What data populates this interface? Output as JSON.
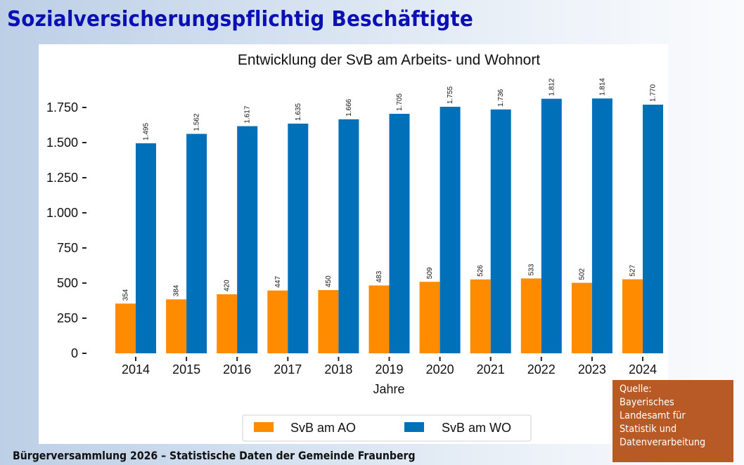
{
  "slide": {
    "title": "Sozialversicherungspflichtig Beschäftigte",
    "footer": "Bürgerversammlung 2026 – Statistische Daten der Gemeinde Fraunberg",
    "source_lines": [
      "Quelle:",
      "Bayerisches",
      "Landesamt für",
      "Statistik und",
      "Datenverarbeitung"
    ]
  },
  "colors": {
    "title": "#0a10b4",
    "series_ao": "#ff8c00",
    "series_wo": "#0070b8",
    "source_box": "#b85a26"
  },
  "chart_data": {
    "type": "bar",
    "title": "Entwicklung der SvB am Arbeits- und Wohnort",
    "xlabel": "Jahre",
    "ylabel": "",
    "categories": [
      "2014",
      "2015",
      "2016",
      "2017",
      "2018",
      "2019",
      "2020",
      "2021",
      "2022",
      "2023",
      "2024"
    ],
    "series": [
      {
        "name": "SvB am AO",
        "color": "#ff8c00",
        "values": [
          354,
          384,
          420,
          447,
          450,
          483,
          509,
          526,
          533,
          502,
          527
        ]
      },
      {
        "name": "SvB am WO",
        "color": "#0070b8",
        "values": [
          1495,
          1562,
          1617,
          1635,
          1666,
          1705,
          1755,
          1736,
          1812,
          1814,
          1770
        ]
      }
    ],
    "data_labels": [
      [
        "354",
        "384",
        "420",
        "447",
        "450",
        "483",
        "509",
        "526",
        "533",
        "502",
        "527"
      ],
      [
        "1.495",
        "1.562",
        "1.617",
        "1.635",
        "1.666",
        "1.705",
        "1.755",
        "1.736",
        "1.812",
        "1.814",
        "1.770"
      ]
    ],
    "yticks": [
      0,
      250,
      500,
      750,
      1000,
      1250,
      1500,
      1750
    ],
    "ytick_labels": [
      "0",
      "250",
      "500",
      "750",
      "1.000",
      "1.250",
      "1.500",
      "1.750"
    ],
    "ylim": [
      0,
      1750
    ],
    "grid": false,
    "legend": {
      "position": "bottom-center",
      "entries": [
        "SvB am AO",
        "SvB am WO"
      ]
    }
  }
}
